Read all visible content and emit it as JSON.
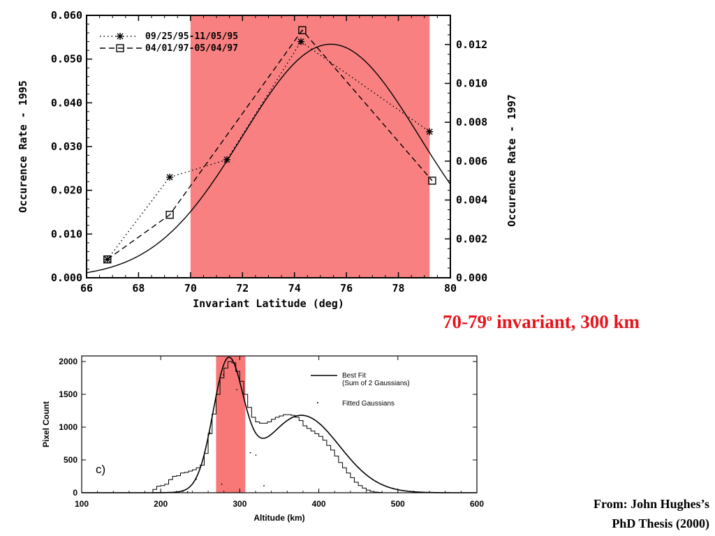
{
  "chart_data": [
    {
      "type": "line",
      "xlabel": "Invariant Latitude (deg)",
      "ylabel": "Occurence Rate - 1995",
      "y2label": "Occurence Rate - 1997",
      "xlim": [
        66,
        80
      ],
      "ylim": [
        0,
        0.06
      ],
      "y2lim": [
        0,
        0.0135
      ],
      "x_ticks": [
        "66",
        "68",
        "70",
        "72",
        "74",
        "76",
        "78",
        "80"
      ],
      "y_ticks": [
        "0.000",
        "0.010",
        "0.020",
        "0.030",
        "0.040",
        "0.050",
        "0.060"
      ],
      "y2_ticks": [
        "0.000",
        "0.002",
        "0.004",
        "0.006",
        "0.008",
        "0.010",
        "0.012"
      ],
      "highlight_range": [
        70,
        79.2
      ],
      "highlight_color": "#f88080",
      "series": [
        {
          "name": "09/25/95-11/05/95",
          "style": "dotted",
          "marker": "asterisk",
          "axis": "left",
          "x": [
            66.8,
            69.2,
            71.4,
            74.25,
            79.2
          ],
          "y": [
            0.0042,
            0.023,
            0.027,
            0.054,
            0.0334
          ]
        },
        {
          "name": "04/01/97-05/04/97",
          "style": "dashed",
          "marker": "square",
          "axis": "left",
          "x": [
            66.8,
            69.2,
            74.3,
            79.3
          ],
          "y": [
            0.0042,
            0.0144,
            0.0566,
            0.0222
          ]
        },
        {
          "name": "",
          "style": "solid",
          "marker": "none",
          "axis": "left",
          "gaussian_fit": {
            "amplitude": 0.0534,
            "center": 75.4,
            "sigma": 3.4
          }
        }
      ],
      "legend_position": "top-left"
    },
    {
      "type": "line",
      "xlabel": "Altitude (km)",
      "ylabel": "Pixel Count",
      "xlim": [
        100,
        600
      ],
      "ylim": [
        0,
        2000
      ],
      "x_ticks": [
        "100",
        "200",
        "300",
        "400",
        "500",
        "600"
      ],
      "y_ticks": [
        "0",
        "500",
        "1000",
        "1500",
        "2000"
      ],
      "highlight_range": [
        270,
        307
      ],
      "highlight_color": "#f87878",
      "panel_label": "c)",
      "legend": [
        "Best Fit",
        "(Sum of 2 Gaussians)",
        "Fitted Gaussians"
      ],
      "fit": {
        "gaussians": [
          {
            "amplitude": 1880,
            "center": 285,
            "sigma": 19
          },
          {
            "amplitude": 1180,
            "center": 378,
            "sigma": 48
          }
        ]
      },
      "histogram": {
        "bin_width": 5,
        "start": 185,
        "values": [
          0,
          50,
          100,
          110,
          130,
          200,
          250,
          260,
          300,
          310,
          330,
          350,
          380,
          420,
          600,
          900,
          1200,
          1500,
          1750,
          1900,
          2000,
          1980,
          1850,
          1700,
          1500,
          1300,
          1150,
          1080,
          1060,
          1060,
          1080,
          1120,
          1150,
          1170,
          1190,
          1190,
          1180,
          1150,
          1100,
          1020,
          980,
          940,
          900,
          860,
          800,
          720,
          650,
          560,
          460,
          380,
          300,
          230,
          160,
          110,
          70,
          40,
          20,
          10,
          5,
          0,
          0,
          0,
          0,
          0
        ]
      },
      "legend_position": "top-right"
    }
  ],
  "annotation": {
    "prefix": "70-79",
    "superscript": "o",
    "suffix": " invariant, 300 km",
    "color": "#e8141c"
  },
  "credit": {
    "line1": "From: John Hughes’s",
    "line2": "PhD Thesis (2000)"
  }
}
